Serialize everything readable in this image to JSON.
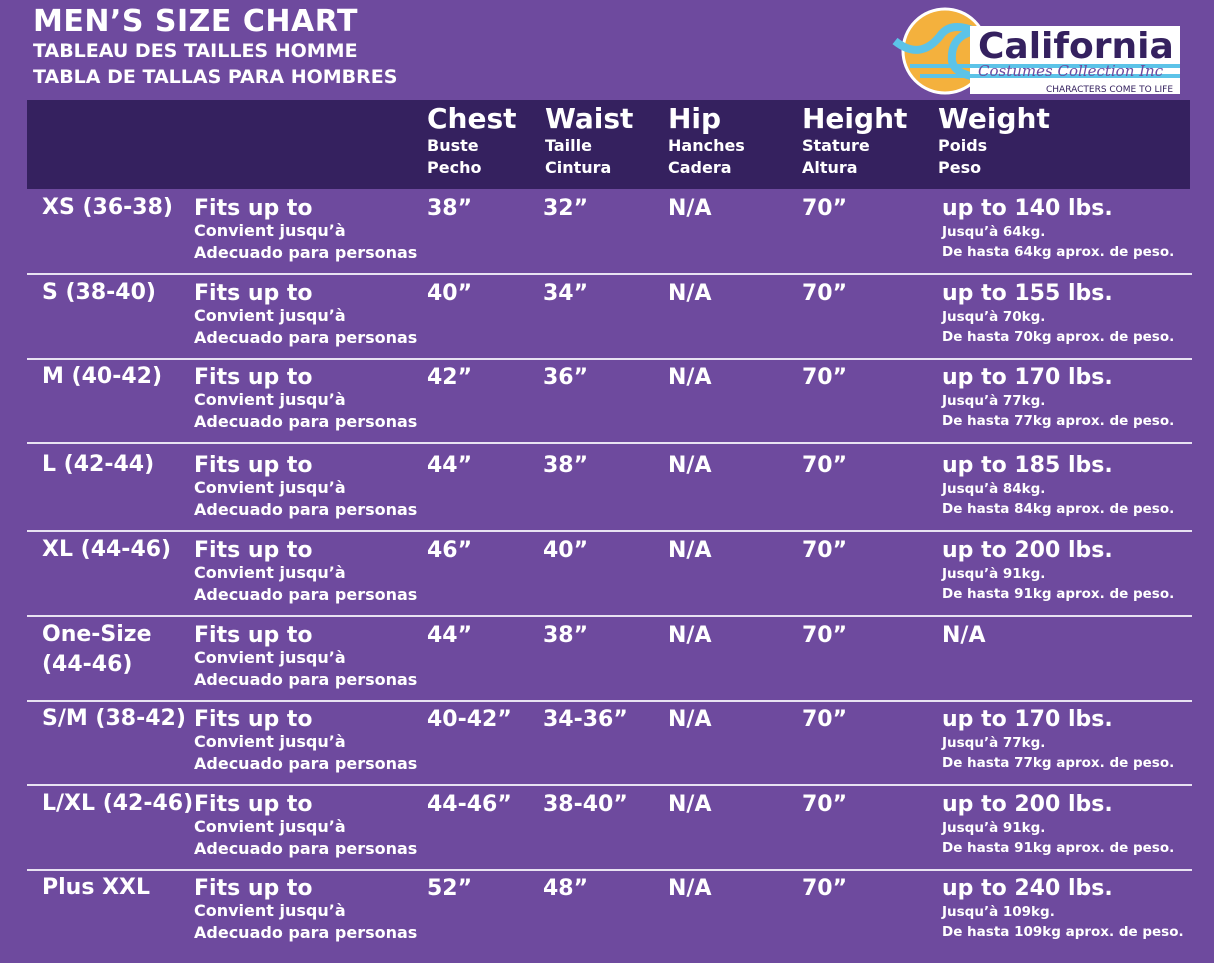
{
  "title": "MEN’S SIZE CHART",
  "subtitle_fr": "TABLEAU DES TAILLES HOMME",
  "subtitle_es": "TABLA DE TALLAS PARA HOMBRES",
  "logo": {
    "name": "California",
    "script": "Costumes Collection Inc",
    "tagline": "CHARACTERS COME TO LIFE",
    "colors": {
      "sun": "#f4b13d",
      "wave": "#5cc3e8",
      "text": "#35215f"
    }
  },
  "colors": {
    "background": "#6e4a9e",
    "header": "#35215f"
  },
  "headers": [
    {
      "en": "Chest",
      "fr": "Buste",
      "es": "Pecho"
    },
    {
      "en": "Waist",
      "fr": "Taille",
      "es": "Cintura"
    },
    {
      "en": "Hip",
      "fr": "Hanches",
      "es": "Cadera"
    },
    {
      "en": "Height",
      "fr": "Stature",
      "es": "Altura"
    },
    {
      "en": "Weight",
      "fr": "Poids",
      "es": "Peso"
    }
  ],
  "fits": {
    "en": "Fits up to",
    "fr": "Convient jusqu’à",
    "es": "Adecuado para personas"
  },
  "rows": [
    {
      "size": "XS (36-38)",
      "chest": "38”",
      "waist": "32”",
      "hip": "N/A",
      "height": "70”",
      "weight": "up to 140 lbs.",
      "weight_fr": "Jusqu’à 64kg.",
      "weight_es": "De hasta 64kg aprox. de peso."
    },
    {
      "size": "S (38-40)",
      "chest": "40”",
      "waist": "34”",
      "hip": "N/A",
      "height": "70”",
      "weight": "up to 155 lbs.",
      "weight_fr": "Jusqu’à 70kg.",
      "weight_es": "De hasta 70kg aprox. de peso."
    },
    {
      "size": "M (40-42)",
      "chest": "42”",
      "waist": "36”",
      "hip": "N/A",
      "height": "70”",
      "weight": "up to 170 lbs.",
      "weight_fr": "Jusqu’à 77kg.",
      "weight_es": "De hasta 77kg aprox. de peso."
    },
    {
      "size": "L (42-44)",
      "chest": "44”",
      "waist": "38”",
      "hip": "N/A",
      "height": "70”",
      "weight": "up to 185 lbs.",
      "weight_fr": "Jusqu’à 84kg.",
      "weight_es": "De hasta 84kg aprox. de peso."
    },
    {
      "size": "XL (44-46)",
      "chest": "46”",
      "waist": "40”",
      "hip": "N/A",
      "height": "70”",
      "weight": "up to 200 lbs.",
      "weight_fr": "Jusqu’à 91kg.",
      "weight_es": "De hasta 91kg aprox. de peso."
    },
    {
      "size": "One-Size\n(44-46)",
      "chest": "44”",
      "waist": "38”",
      "hip": "N/A",
      "height": "70”",
      "weight": "N/A",
      "weight_fr": "",
      "weight_es": ""
    },
    {
      "size": "S/M (38-42)",
      "chest": "40-42”",
      "waist": "34-36”",
      "hip": "N/A",
      "height": "70”",
      "weight": "up to 170 lbs.",
      "weight_fr": "Jusqu’à 77kg.",
      "weight_es": "De hasta 77kg aprox. de peso."
    },
    {
      "size": "L/XL (42-46)",
      "chest": "44-46”",
      "waist": "38-40”",
      "hip": "N/A",
      "height": "70”",
      "weight": "up to 200 lbs.",
      "weight_fr": "Jusqu’à 91kg.",
      "weight_es": "De hasta 91kg aprox. de peso."
    },
    {
      "size": "Plus XXL",
      "chest": "52”",
      "waist": "48”",
      "hip": "N/A",
      "height": "70”",
      "weight": "up to 240 lbs.",
      "weight_fr": "Jusqu’à 109kg.",
      "weight_es": "De hasta 109kg aprox. de peso."
    }
  ]
}
